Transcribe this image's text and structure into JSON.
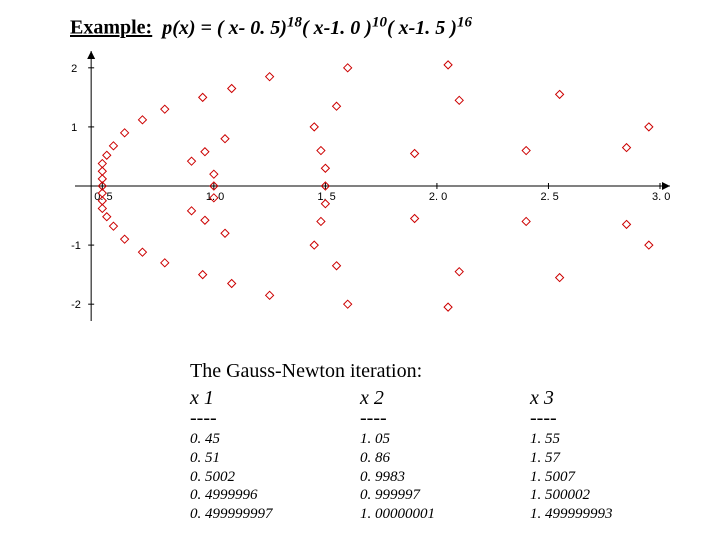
{
  "title": {
    "label_plain": "Example:",
    "px_prefix": "p(x) = ( x- ",
    "root1": "0. 5)",
    "exp1": "18",
    "mid1": "( x-",
    "root2": "1. 0 )",
    "exp2": "10",
    "mid2": "( x-",
    "root3": "1. 5 )",
    "exp3": "16"
  },
  "chart": {
    "type": "scatter",
    "xlim": [
      0.4,
      3.0
    ],
    "ylim": [
      -2.2,
      2.2
    ],
    "xtick_labels": [
      "0. 5",
      "1. 0",
      "1. 5",
      "2. 0",
      "2. 5",
      "3. 0"
    ],
    "xtick_values": [
      0.5,
      1.0,
      1.5,
      2.0,
      2.5,
      3.0
    ],
    "ytick_labels": [
      "-2",
      "-1",
      "1",
      "2"
    ],
    "ytick_values": [
      -2,
      -1,
      1,
      2
    ],
    "axis_color": "#000000",
    "point_color": "#cc0000",
    "point_marker": "open-diamond",
    "point_size": 4,
    "background_color": "#ffffff",
    "points": [
      [
        0.5,
        0.0
      ],
      [
        0.5,
        0.12
      ],
      [
        0.5,
        -0.12
      ],
      [
        0.5,
        0.25
      ],
      [
        0.5,
        -0.25
      ],
      [
        0.5,
        0.38
      ],
      [
        0.5,
        -0.38
      ],
      [
        0.52,
        0.52
      ],
      [
        0.52,
        -0.52
      ],
      [
        0.55,
        0.68
      ],
      [
        0.55,
        -0.68
      ],
      [
        0.6,
        0.9
      ],
      [
        0.6,
        -0.9
      ],
      [
        0.68,
        1.12
      ],
      [
        0.68,
        -1.12
      ],
      [
        0.78,
        1.3
      ],
      [
        0.78,
        -1.3
      ],
      [
        0.9,
        0.42
      ],
      [
        0.9,
        -0.42
      ],
      [
        0.96,
        0.58
      ],
      [
        0.96,
        -0.58
      ],
      [
        1.0,
        0.0
      ],
      [
        1.0,
        0.2
      ],
      [
        1.0,
        -0.2
      ],
      [
        1.05,
        0.8
      ],
      [
        1.05,
        -0.8
      ],
      [
        0.95,
        1.5
      ],
      [
        0.95,
        -1.5
      ],
      [
        1.08,
        1.65
      ],
      [
        1.08,
        -1.65
      ],
      [
        1.25,
        1.85
      ],
      [
        1.25,
        -1.85
      ],
      [
        1.5,
        0.0
      ],
      [
        1.5,
        0.3
      ],
      [
        1.5,
        -0.3
      ],
      [
        1.48,
        0.6
      ],
      [
        1.48,
        -0.6
      ],
      [
        1.45,
        1.0
      ],
      [
        1.45,
        -1.0
      ],
      [
        1.55,
        1.35
      ],
      [
        1.55,
        -1.35
      ],
      [
        1.6,
        2.0
      ],
      [
        1.6,
        -2.0
      ],
      [
        1.9,
        0.55
      ],
      [
        1.9,
        -0.55
      ],
      [
        2.1,
        1.45
      ],
      [
        2.1,
        -1.45
      ],
      [
        2.05,
        2.05
      ],
      [
        2.05,
        -2.05
      ],
      [
        2.4,
        0.6
      ],
      [
        2.4,
        -0.6
      ],
      [
        2.55,
        1.55
      ],
      [
        2.55,
        -1.55
      ],
      [
        2.85,
        0.65
      ],
      [
        2.85,
        -0.65
      ],
      [
        2.95,
        1.0
      ],
      [
        2.95,
        -1.0
      ]
    ]
  },
  "iteration": {
    "title": "The Gauss-Newton iteration:",
    "headers": [
      "x 1",
      "x 2",
      "x 3"
    ],
    "dashes": [
      "----",
      "----",
      "----"
    ],
    "rows": [
      [
        "0. 45",
        "1. 05",
        "1. 55"
      ],
      [
        "0. 51",
        "0. 86",
        "1. 57"
      ],
      [
        "0. 5002",
        "0. 9983",
        "1. 5007"
      ],
      [
        "0. 4999996",
        "0. 999997",
        "1. 500002"
      ],
      [
        "0. 499999997",
        "1. 00000001",
        "1. 499999993"
      ]
    ]
  }
}
